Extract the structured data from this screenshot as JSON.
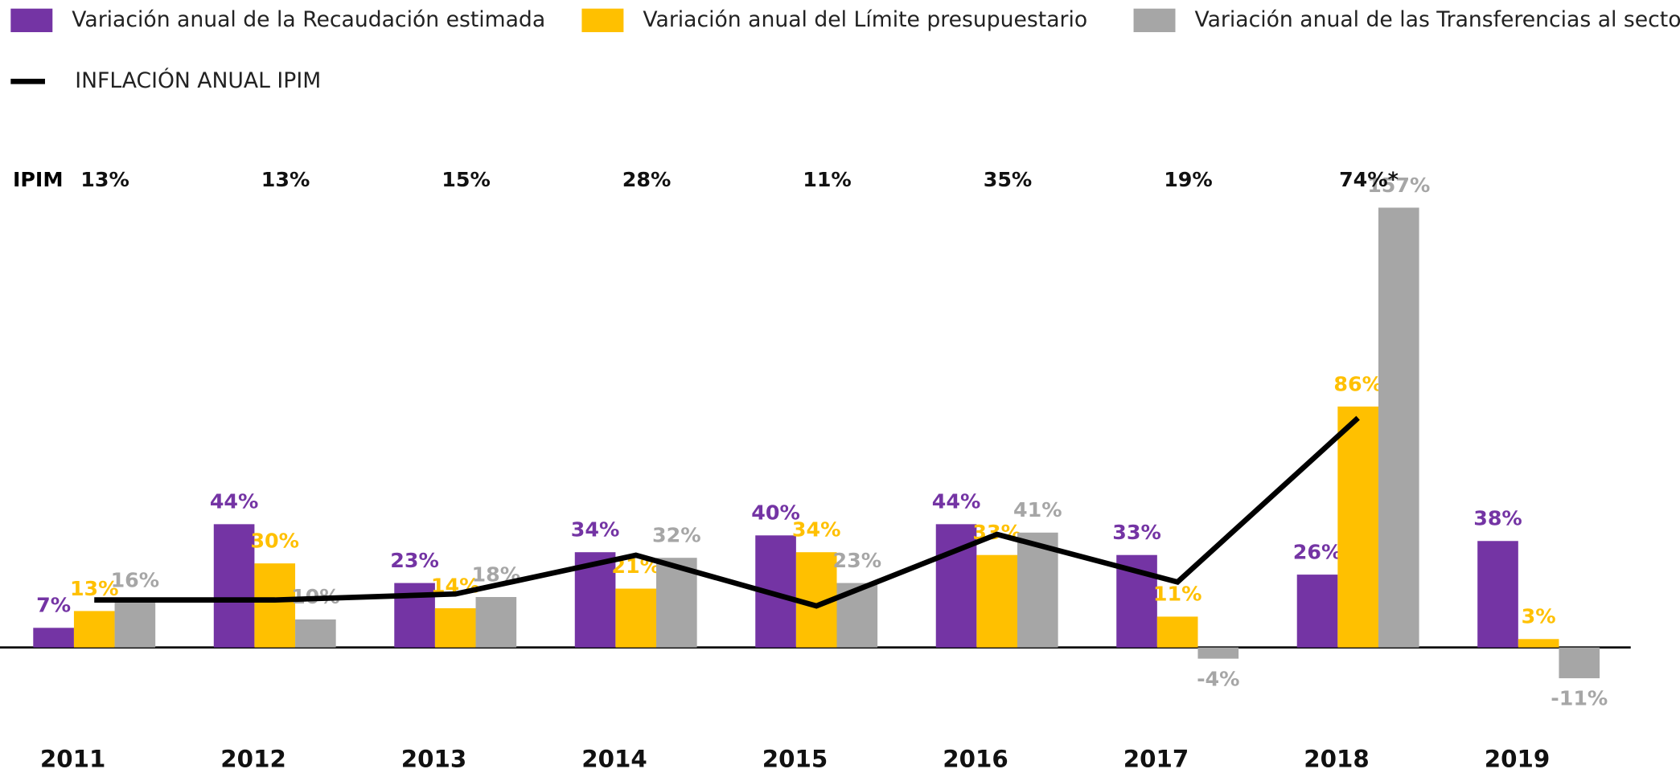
{
  "chart_data": {
    "type": "bar",
    "categories": [
      "2011",
      "2012",
      "2013",
      "2014",
      "2015",
      "2016",
      "2017",
      "2018",
      "2019"
    ],
    "ylim": [
      -15,
      165
    ],
    "y2lim": [
      -17,
      152
    ],
    "line_label": "IPIM",
    "series": [
      {
        "name": "Variación anual de la Recaudación estimada",
        "color": "#7434a4",
        "values": [
          7,
          44,
          23,
          34,
          40,
          44,
          33,
          26,
          38
        ],
        "value_labels": [
          "7%",
          "44%",
          "23%",
          "34%",
          "40%",
          "44%",
          "33%",
          "26%",
          "38%"
        ]
      },
      {
        "name": "Variación anual del Límite presupuestario",
        "color": "#ffc000",
        "values": [
          13,
          30,
          14,
          21,
          34,
          33,
          11,
          86,
          3
        ],
        "value_labels": [
          "13%",
          "30%",
          "14%",
          "21%",
          "34%",
          "33%",
          "11%",
          "86%",
          "3%"
        ]
      },
      {
        "name": "Variación anual de las Transferencias al sector",
        "color": "#a6a6a6",
        "values": [
          16,
          10,
          18,
          32,
          23,
          41,
          -4,
          157,
          -11
        ],
        "value_labels": [
          "16%",
          "10%",
          "18%",
          "32%",
          "23%",
          "41%",
          "-4%",
          "157%",
          "-11%"
        ]
      },
      {
        "name": "INFLACIÓN ANUAL IPIM",
        "color": "#000000",
        "type": "line",
        "axis": "y2",
        "values": [
          13,
          13,
          15,
          28,
          11,
          35,
          19,
          74,
          null
        ],
        "value_labels": [
          "13%",
          "13%",
          "15%",
          "28%",
          "11%",
          "35%",
          "19%",
          "74%*",
          null
        ]
      }
    ]
  }
}
